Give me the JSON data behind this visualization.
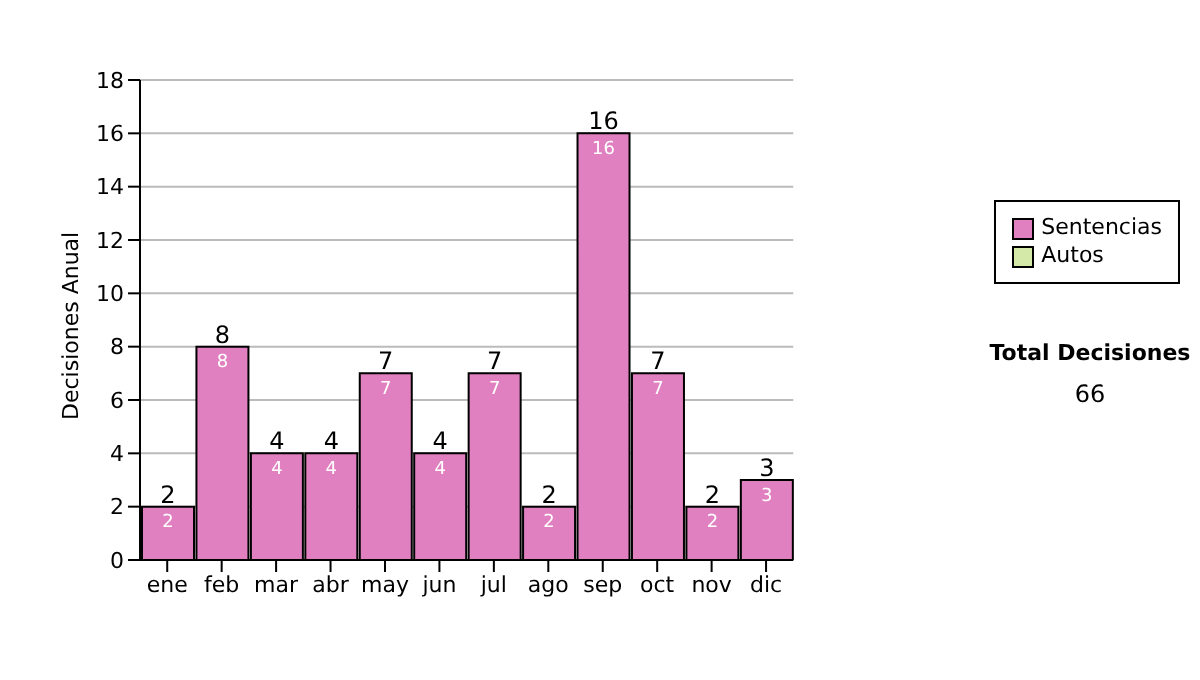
{
  "chart_data": {
    "type": "bar",
    "ylabel": "Decisiones Anual",
    "categories": [
      "ene",
      "feb",
      "mar",
      "abr",
      "may",
      "jun",
      "jul",
      "ago",
      "sep",
      "oct",
      "nov",
      "dic"
    ],
    "series": [
      {
        "name": "Sentencias",
        "color": "#e080c0",
        "values": [
          2,
          8,
          4,
          4,
          7,
          4,
          7,
          2,
          16,
          7,
          2,
          3
        ],
        "value_labels": [
          "2",
          "8",
          "4",
          "4",
          "7",
          "4",
          "7",
          "2",
          "16",
          "7",
          "2",
          "3"
        ]
      },
      {
        "name": "Autos",
        "color": "#d4e8a8",
        "values": [
          0,
          0,
          0,
          0,
          0,
          0,
          0,
          0,
          0,
          0,
          0,
          0
        ],
        "value_labels": [
          null,
          null,
          null,
          null,
          null,
          null,
          null,
          null,
          null,
          null,
          null,
          null
        ]
      }
    ],
    "stacked": true,
    "totals": [
      "2",
      "8",
      "4",
      "4",
      "7",
      "4",
      "7",
      "2",
      "16",
      "7",
      "2",
      "3"
    ],
    "ylim": [
      0,
      18
    ],
    "yticks": [
      0,
      2,
      4,
      6,
      8,
      10,
      12,
      14,
      16,
      18
    ],
    "grid": "y",
    "legend": "right",
    "annotations": [
      "Total Decisiones",
      "66"
    ]
  }
}
